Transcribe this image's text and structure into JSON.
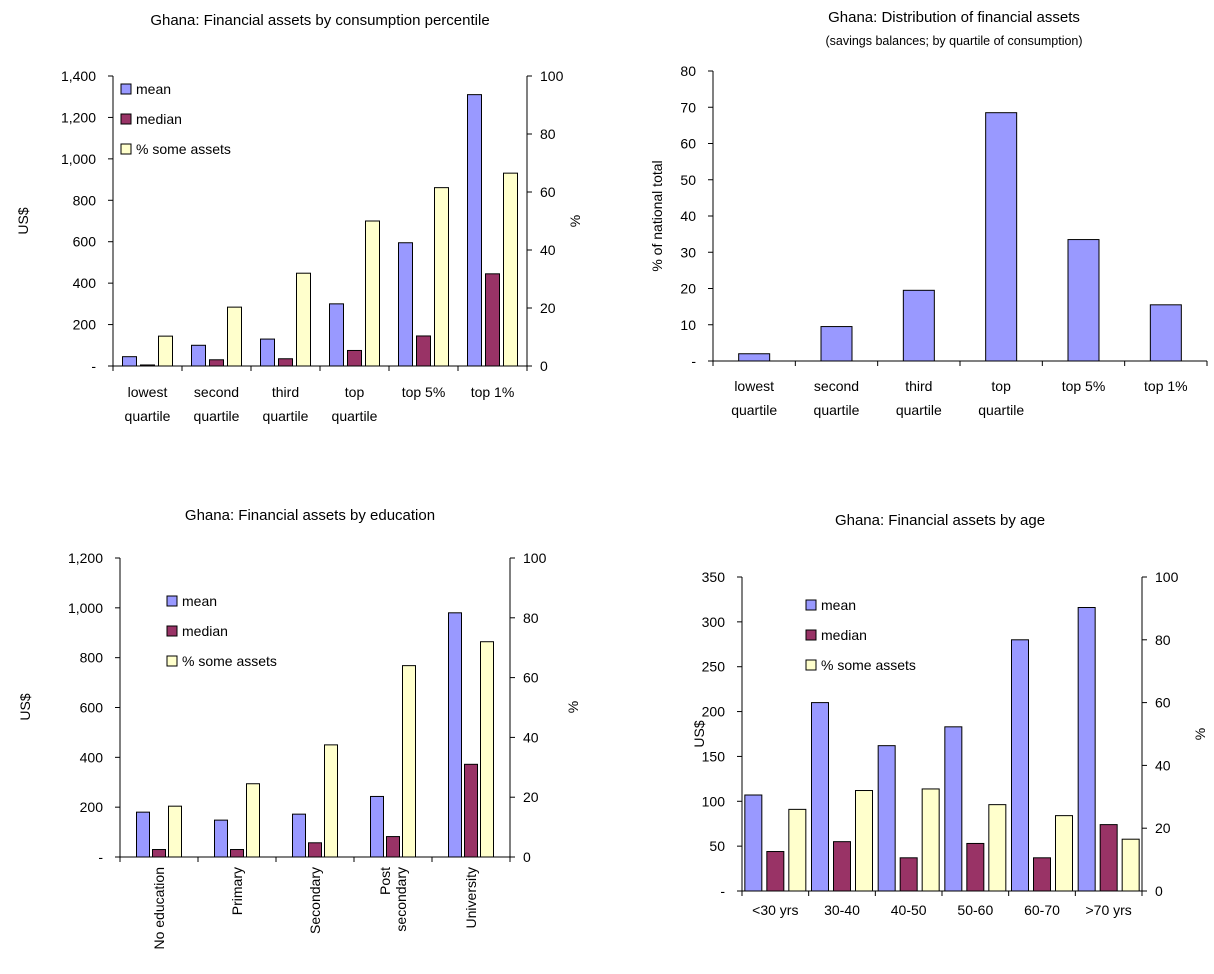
{
  "colors": {
    "mean": "#9999ff",
    "median": "#993366",
    "pct": "#ffffcc",
    "share": "#9999ff"
  },
  "chart_data": [
    {
      "type": "bar",
      "title": "Ghana: Financial assets by consumption percentile",
      "categories": [
        [
          "lowest",
          "quartile"
        ],
        [
          "second",
          "quartile"
        ],
        [
          "third",
          "quartile"
        ],
        [
          "top",
          "quartile"
        ],
        [
          "top 5%"
        ],
        [
          "top 1%"
        ]
      ],
      "ylabel": "US$",
      "y2label": "%",
      "ylim": [
        0,
        1400
      ],
      "y2lim": [
        0,
        100
      ],
      "yticks": [
        "-",
        "200",
        "400",
        "600",
        "800",
        "1,000",
        "1,200",
        "1,400"
      ],
      "y2ticks": [
        "0",
        "20",
        "40",
        "60",
        "80",
        "100"
      ],
      "series": [
        {
          "name": "mean",
          "axis": "left",
          "values": [
            45,
            100,
            130,
            300,
            595,
            1310
          ]
        },
        {
          "name": "median",
          "axis": "left",
          "values": [
            5,
            30,
            35,
            75,
            145,
            445
          ]
        },
        {
          "name": "% some assets",
          "axis": "right",
          "values": [
            10.3,
            20.3,
            32,
            50,
            61.5,
            66.5
          ]
        }
      ],
      "legend": "top-left"
    },
    {
      "type": "bar",
      "title": "Ghana: Distribution of financial assets",
      "subtitle": "(savings balances; by quartile of consumption)",
      "categories": [
        [
          "lowest",
          "quartile"
        ],
        [
          "second",
          "quartile"
        ],
        [
          "third",
          "quartile"
        ],
        [
          "top",
          "quartile"
        ],
        [
          "top 5%"
        ],
        [
          "top 1%"
        ]
      ],
      "ylabel": "% of national total",
      "ylim": [
        0,
        80
      ],
      "yticks": [
        "-",
        "10",
        "20",
        "30",
        "40",
        "50",
        "60",
        "70",
        "80"
      ],
      "series": [
        {
          "axis": "left",
          "values": [
            2,
            9.5,
            19.5,
            68.5,
            33.5,
            15.5
          ]
        }
      ]
    },
    {
      "type": "bar",
      "title": "Ghana: Financial assets by education",
      "categories": [
        [
          "No education"
        ],
        [
          "Primary"
        ],
        [
          "Secondary"
        ],
        [
          "Post",
          "secondary"
        ],
        [
          "University"
        ]
      ],
      "ylabel": "US$",
      "y2label": "%",
      "ylim": [
        0,
        1200
      ],
      "y2lim": [
        0,
        100
      ],
      "yticks": [
        "-",
        "200",
        "400",
        "600",
        "800",
        "1,000",
        "1,200"
      ],
      "y2ticks": [
        "0",
        "20",
        "40",
        "60",
        "80",
        "100"
      ],
      "series": [
        {
          "name": "mean",
          "axis": "left",
          "values": [
            180,
            148,
            172,
            243,
            980
          ]
        },
        {
          "name": "median",
          "axis": "left",
          "values": [
            30,
            30,
            57,
            82,
            372
          ]
        },
        {
          "name": "% some assets",
          "axis": "right",
          "values": [
            17,
            24.5,
            37.5,
            64,
            72
          ]
        }
      ],
      "legend": "top-left"
    },
    {
      "type": "bar",
      "title": "Ghana: Financial assets by age",
      "categories": [
        [
          "<30 yrs"
        ],
        [
          "30-40"
        ],
        [
          "40-50"
        ],
        [
          "50-60"
        ],
        [
          "60-70"
        ],
        [
          ">70 yrs"
        ]
      ],
      "ylabel": "US$",
      "y2label": "%",
      "ylim": [
        0,
        350
      ],
      "y2lim": [
        0,
        100
      ],
      "yticks": [
        "-",
        "50",
        "100",
        "150",
        "200",
        "250",
        "300",
        "350"
      ],
      "y2ticks": [
        "0",
        "20",
        "40",
        "60",
        "80",
        "100"
      ],
      "series": [
        {
          "name": "mean",
          "axis": "left",
          "values": [
            107,
            210,
            162,
            183,
            280,
            316
          ]
        },
        {
          "name": "median",
          "axis": "left",
          "values": [
            44,
            55,
            37,
            53,
            37,
            74
          ]
        },
        {
          "name": "% some assets",
          "axis": "right",
          "values": [
            26,
            32,
            32.5,
            27.5,
            24,
            16.5
          ]
        }
      ],
      "legend": "top-left"
    }
  ]
}
